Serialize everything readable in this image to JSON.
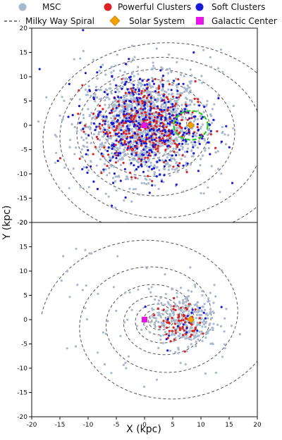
{
  "legend": {
    "items": [
      {
        "label": "MSC",
        "marker": "circle",
        "color": "#a9b8cc"
      },
      {
        "label": "Powerful Clusters",
        "marker": "circle",
        "color": "#dd2222"
      },
      {
        "label": "Soft Clusters",
        "marker": "circle",
        "color": "#1a1ad6"
      },
      {
        "label": "Milky Way Spiral",
        "marker": "dashed-line",
        "color": "#555555"
      },
      {
        "label": "Solar System",
        "marker": "diamond",
        "color": "#f5a000"
      },
      {
        "label": "Galactic Center",
        "marker": "square",
        "color": "#e815e8"
      }
    ]
  },
  "chart_data": [
    {
      "type": "scatter",
      "xlabel": "",
      "ylabel": "",
      "xlim": [
        -20,
        20
      ],
      "ylim": [
        -20,
        20
      ],
      "xticks": [
        -20,
        -15,
        -10,
        -5,
        0,
        5,
        10,
        15,
        20
      ],
      "yticks": [
        -20,
        -15,
        -10,
        -5,
        0,
        5,
        10,
        15,
        20
      ],
      "grid": false,
      "series": [
        {
          "name": "MSC",
          "color": "#a9b8cc",
          "distribution": "dense central cloud, radius ~13 kpc, centered near (0, 0)"
        },
        {
          "name": "Powerful Clusters",
          "color": "#dd2222",
          "distribution": "scattered within ~10 kpc of center"
        },
        {
          "name": "Soft Clusters",
          "color": "#1a1ad6",
          "distribution": "scattered within ~12 kpc of center"
        }
      ],
      "points": {
        "solar_system": [
          8.2,
          0
        ],
        "galactic_center": [
          0,
          0
        ]
      },
      "annotations": [
        {
          "type": "circle",
          "center": [
            8.2,
            0
          ],
          "radius": 3,
          "color": "#22cc22",
          "style": "dashed"
        }
      ],
      "spiral": "dashed logarithmic spiral arms"
    },
    {
      "type": "scatter",
      "xlabel": "X (kpc)",
      "ylabel": "",
      "xlim": [
        -20,
        20
      ],
      "ylim": [
        -20,
        20
      ],
      "xticks": [
        -20,
        -15,
        -10,
        -5,
        0,
        5,
        10,
        15,
        20
      ],
      "yticks": [
        -20,
        -15,
        -10,
        -5,
        0,
        5,
        10,
        15,
        20
      ],
      "grid": false,
      "series": [
        {
          "name": "MSC",
          "color": "#a9b8cc",
          "distribution": "concentrated around x 3–12, y -6–6, with sparse outliers"
        },
        {
          "name": "Powerful Clusters",
          "color": "#dd2222",
          "distribution": "clustered near x 3–9, y -4–3"
        },
        {
          "name": "Soft Clusters",
          "color": "#1a1ad6",
          "distribution": "few points near x 4–11"
        }
      ],
      "points": {
        "solar_system": [
          8.2,
          0
        ],
        "galactic_center": [
          0,
          0
        ]
      },
      "spiral": "dashed spiral centered on galactic center"
    }
  ],
  "shared_ylabel": "Y (kpc)"
}
